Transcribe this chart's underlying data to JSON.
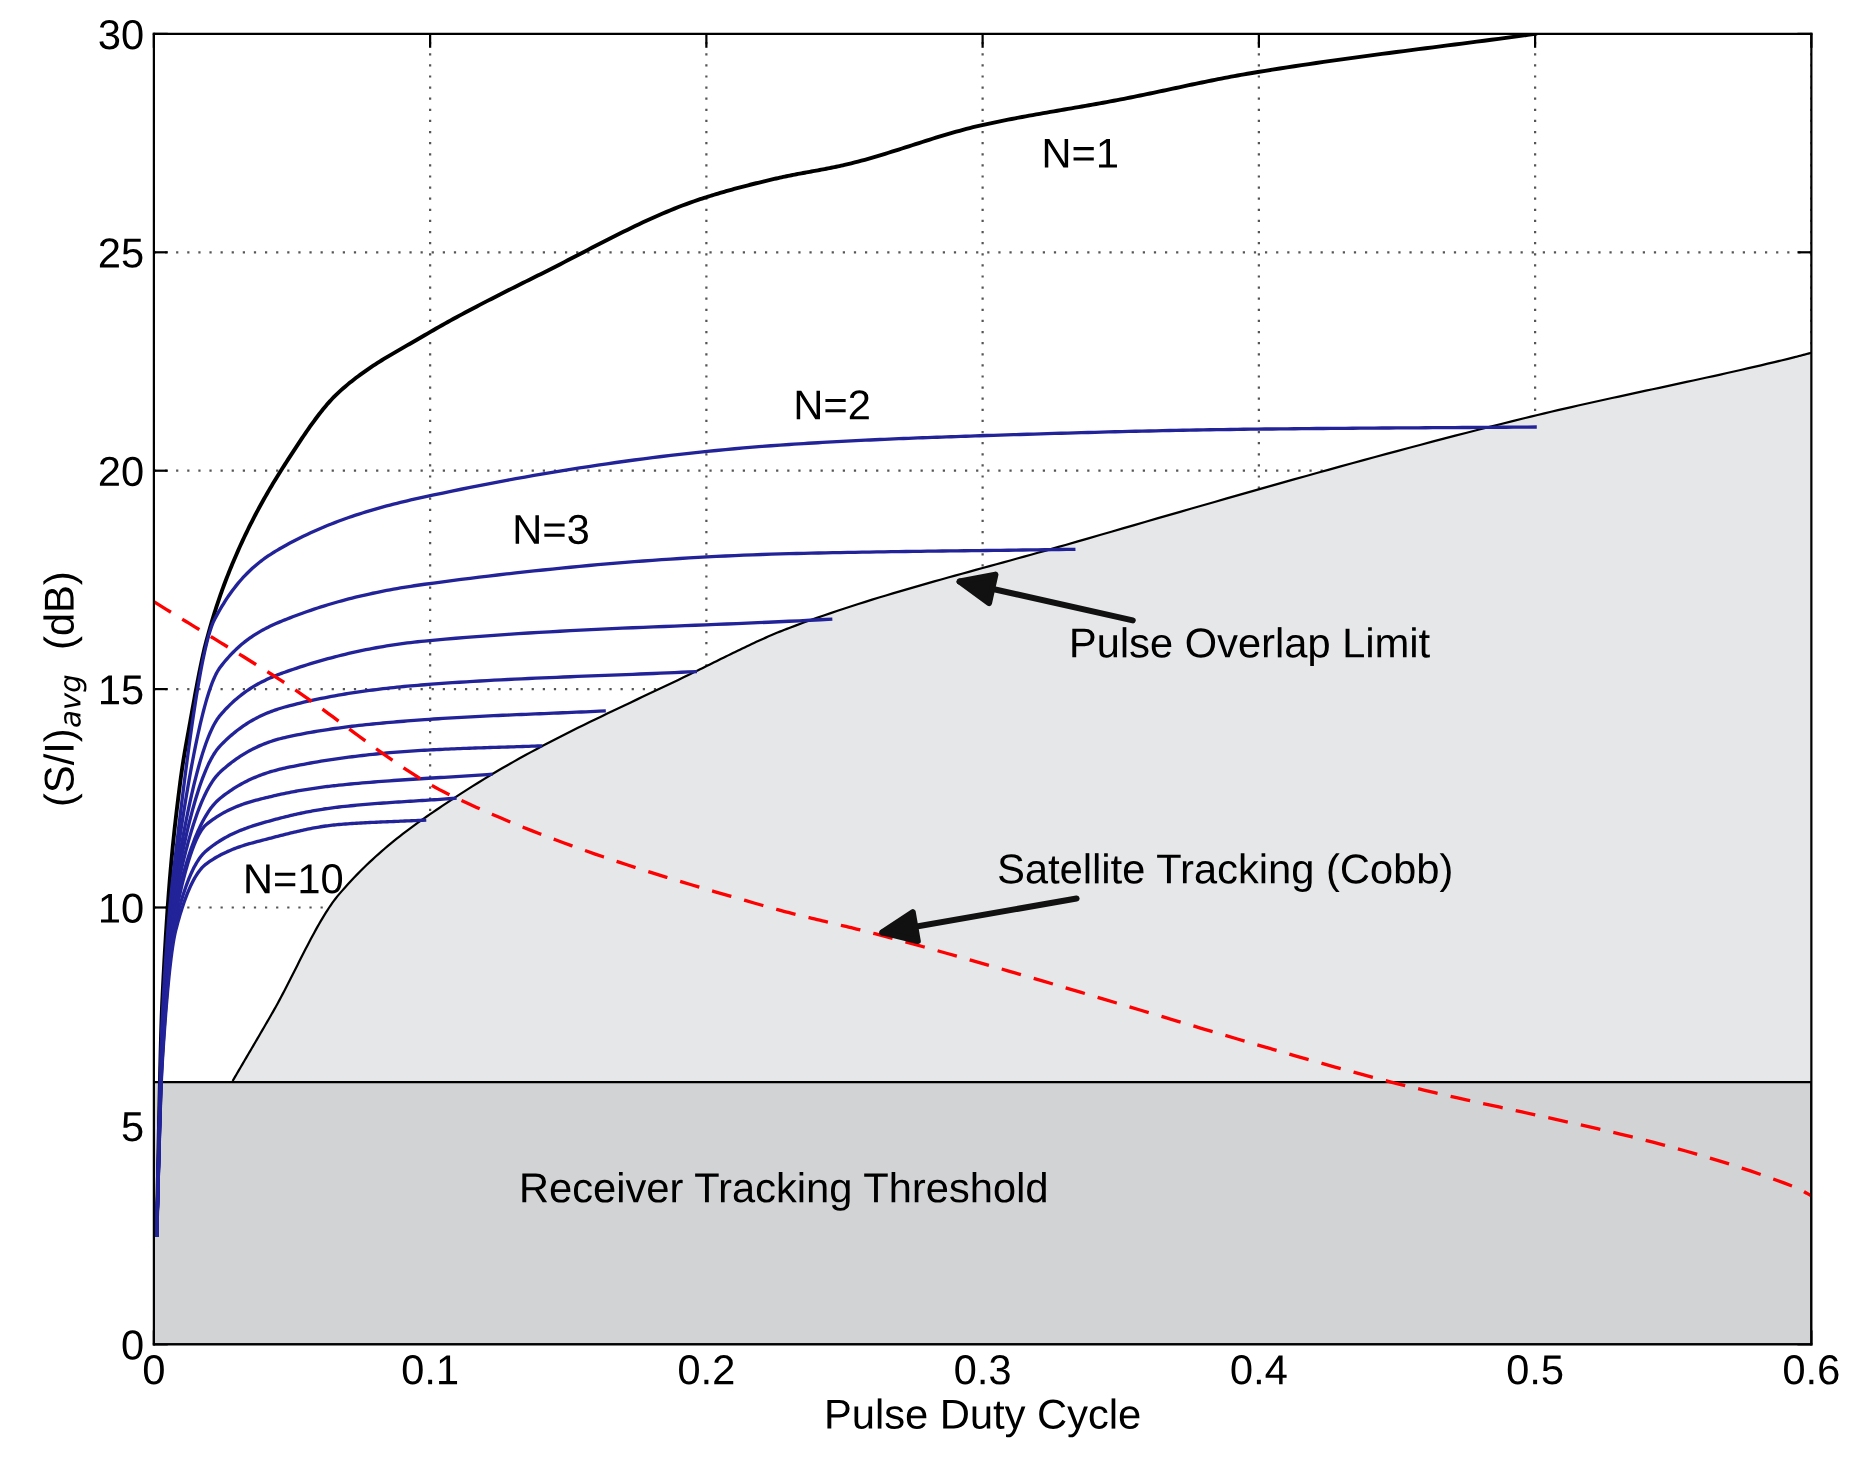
{
  "chart_data": {
    "type": "line",
    "xlabel": "Pulse Duty Cycle",
    "ylabel": "(S/I)$_{avg}$  (dB)",
    "xlim": [
      0,
      0.6
    ],
    "xticks": [
      0,
      0.1,
      0.2,
      0.3,
      0.4,
      0.5,
      0.6
    ],
    "ylim": [
      0,
      30
    ],
    "yticks": [
      0,
      5,
      10,
      15,
      20,
      25,
      30
    ],
    "grid": true,
    "series": [
      {
        "type": "area",
        "color": "#e6e7e9",
        "x": [
          0.0287,
          0.043,
          0.067,
          0.111,
          0.196,
          0.23,
          0.33,
          0.496,
          0.594,
          0.6
        ],
        "values": [
          6.05,
          7.6,
          10.3,
          12.6,
          15.4,
          16.4,
          18.3,
          21.2,
          22.6,
          22.7
        ]
      },
      {
        "name": "N=1",
        "color": "#000000",
        "x": [
          0.001,
          0.003,
          0.0094,
          0.013,
          0.019,
          0.03,
          0.048,
          0.067,
          0.098,
          0.14,
          0.197,
          0.226,
          0.25,
          0.299,
          0.35,
          0.397,
          0.5
        ],
        "values": [
          2.5,
          7.8,
          12.8,
          14.2,
          16.1,
          18.1,
          20.2,
          21.8,
          23.1,
          24.5,
          26.2,
          26.7,
          27.0,
          27.9,
          28.5,
          29.1,
          30.0
        ]
      },
      {
        "name": "N=2",
        "color": "#222299",
        "x": [
          0.001,
          0.003,
          0.008,
          0.022,
          0.048,
          0.098,
          0.23,
          0.299,
          0.397,
          0.5
        ],
        "values": [
          2.5,
          7.4,
          11.3,
          16.6,
          18.3,
          19.4,
          20.6,
          20.8,
          20.95,
          21.0
        ]
      },
      {
        "name": "N=3",
        "color": "#222299",
        "x": [
          0.001,
          0.003,
          0.008,
          0.024,
          0.048,
          0.098,
          0.23,
          0.333
        ],
        "values": [
          2.5,
          7.2,
          11.0,
          15.5,
          16.6,
          17.4,
          18.1,
          18.2
        ]
      },
      {
        "color": "#222299",
        "x": [
          0.001,
          0.003,
          0.008,
          0.024,
          0.048,
          0.098,
          0.245
        ],
        "values": [
          2.5,
          7.0,
          10.7,
          14.4,
          15.4,
          16.1,
          16.6
        ]
      },
      {
        "color": "#222299",
        "x": [
          0.001,
          0.003,
          0.008,
          0.024,
          0.048,
          0.098,
          0.196
        ],
        "values": [
          2.5,
          6.9,
          10.5,
          13.7,
          14.6,
          15.1,
          15.4
        ]
      },
      {
        "color": "#222299",
        "x": [
          0.001,
          0.003,
          0.008,
          0.024,
          0.048,
          0.098,
          0.163
        ],
        "values": [
          2.5,
          6.8,
          10.3,
          13.1,
          13.9,
          14.3,
          14.5
        ]
      },
      {
        "color": "#222299",
        "x": [
          0.001,
          0.003,
          0.008,
          0.024,
          0.048,
          0.098,
          0.14
        ],
        "values": [
          2.5,
          6.7,
          10.1,
          12.5,
          13.2,
          13.6,
          13.7
        ]
      },
      {
        "color": "#222299",
        "x": [
          0.001,
          0.003,
          0.008,
          0.019,
          0.043,
          0.067,
          0.122
        ],
        "values": [
          2.5,
          6.6,
          9.9,
          11.9,
          12.55,
          12.8,
          13.05
        ]
      },
      {
        "color": "#222299",
        "x": [
          0.001,
          0.003,
          0.008,
          0.019,
          0.043,
          0.067,
          0.109
        ],
        "values": [
          2.5,
          6.5,
          9.7,
          11.3,
          12.0,
          12.3,
          12.5
        ]
      },
      {
        "name": "N=10",
        "color": "#222299",
        "x": [
          0.001,
          0.003,
          0.008,
          0.019,
          0.043,
          0.067,
          0.098
        ],
        "values": [
          2.5,
          6.4,
          9.5,
          11.0,
          11.6,
          11.9,
          12.0
        ]
      },
      {
        "color": "#ff0000",
        "line_style": "dashed",
        "x": [
          0,
          0.046,
          0.108,
          0.223,
          0.261,
          0.436,
          0.594,
          0.6
        ],
        "values": [
          17.0,
          15.2,
          12.55,
          10.0,
          9.4,
          6.2,
          3.6,
          3.4
        ]
      }
    ],
    "bands": [
      {
        "axis": "y",
        "from": 0,
        "to": 6,
        "label": "Receiver Tracking Threshold",
        "color": "#d2d3d5"
      }
    ],
    "annotations": [
      {
        "text": "Pulse Overlap Limit",
        "x": 0.289,
        "y": 17.5
      },
      {
        "text": "Satellite Tracking (Cobb)",
        "x": 0.261,
        "y": 9.4
      }
    ]
  }
}
